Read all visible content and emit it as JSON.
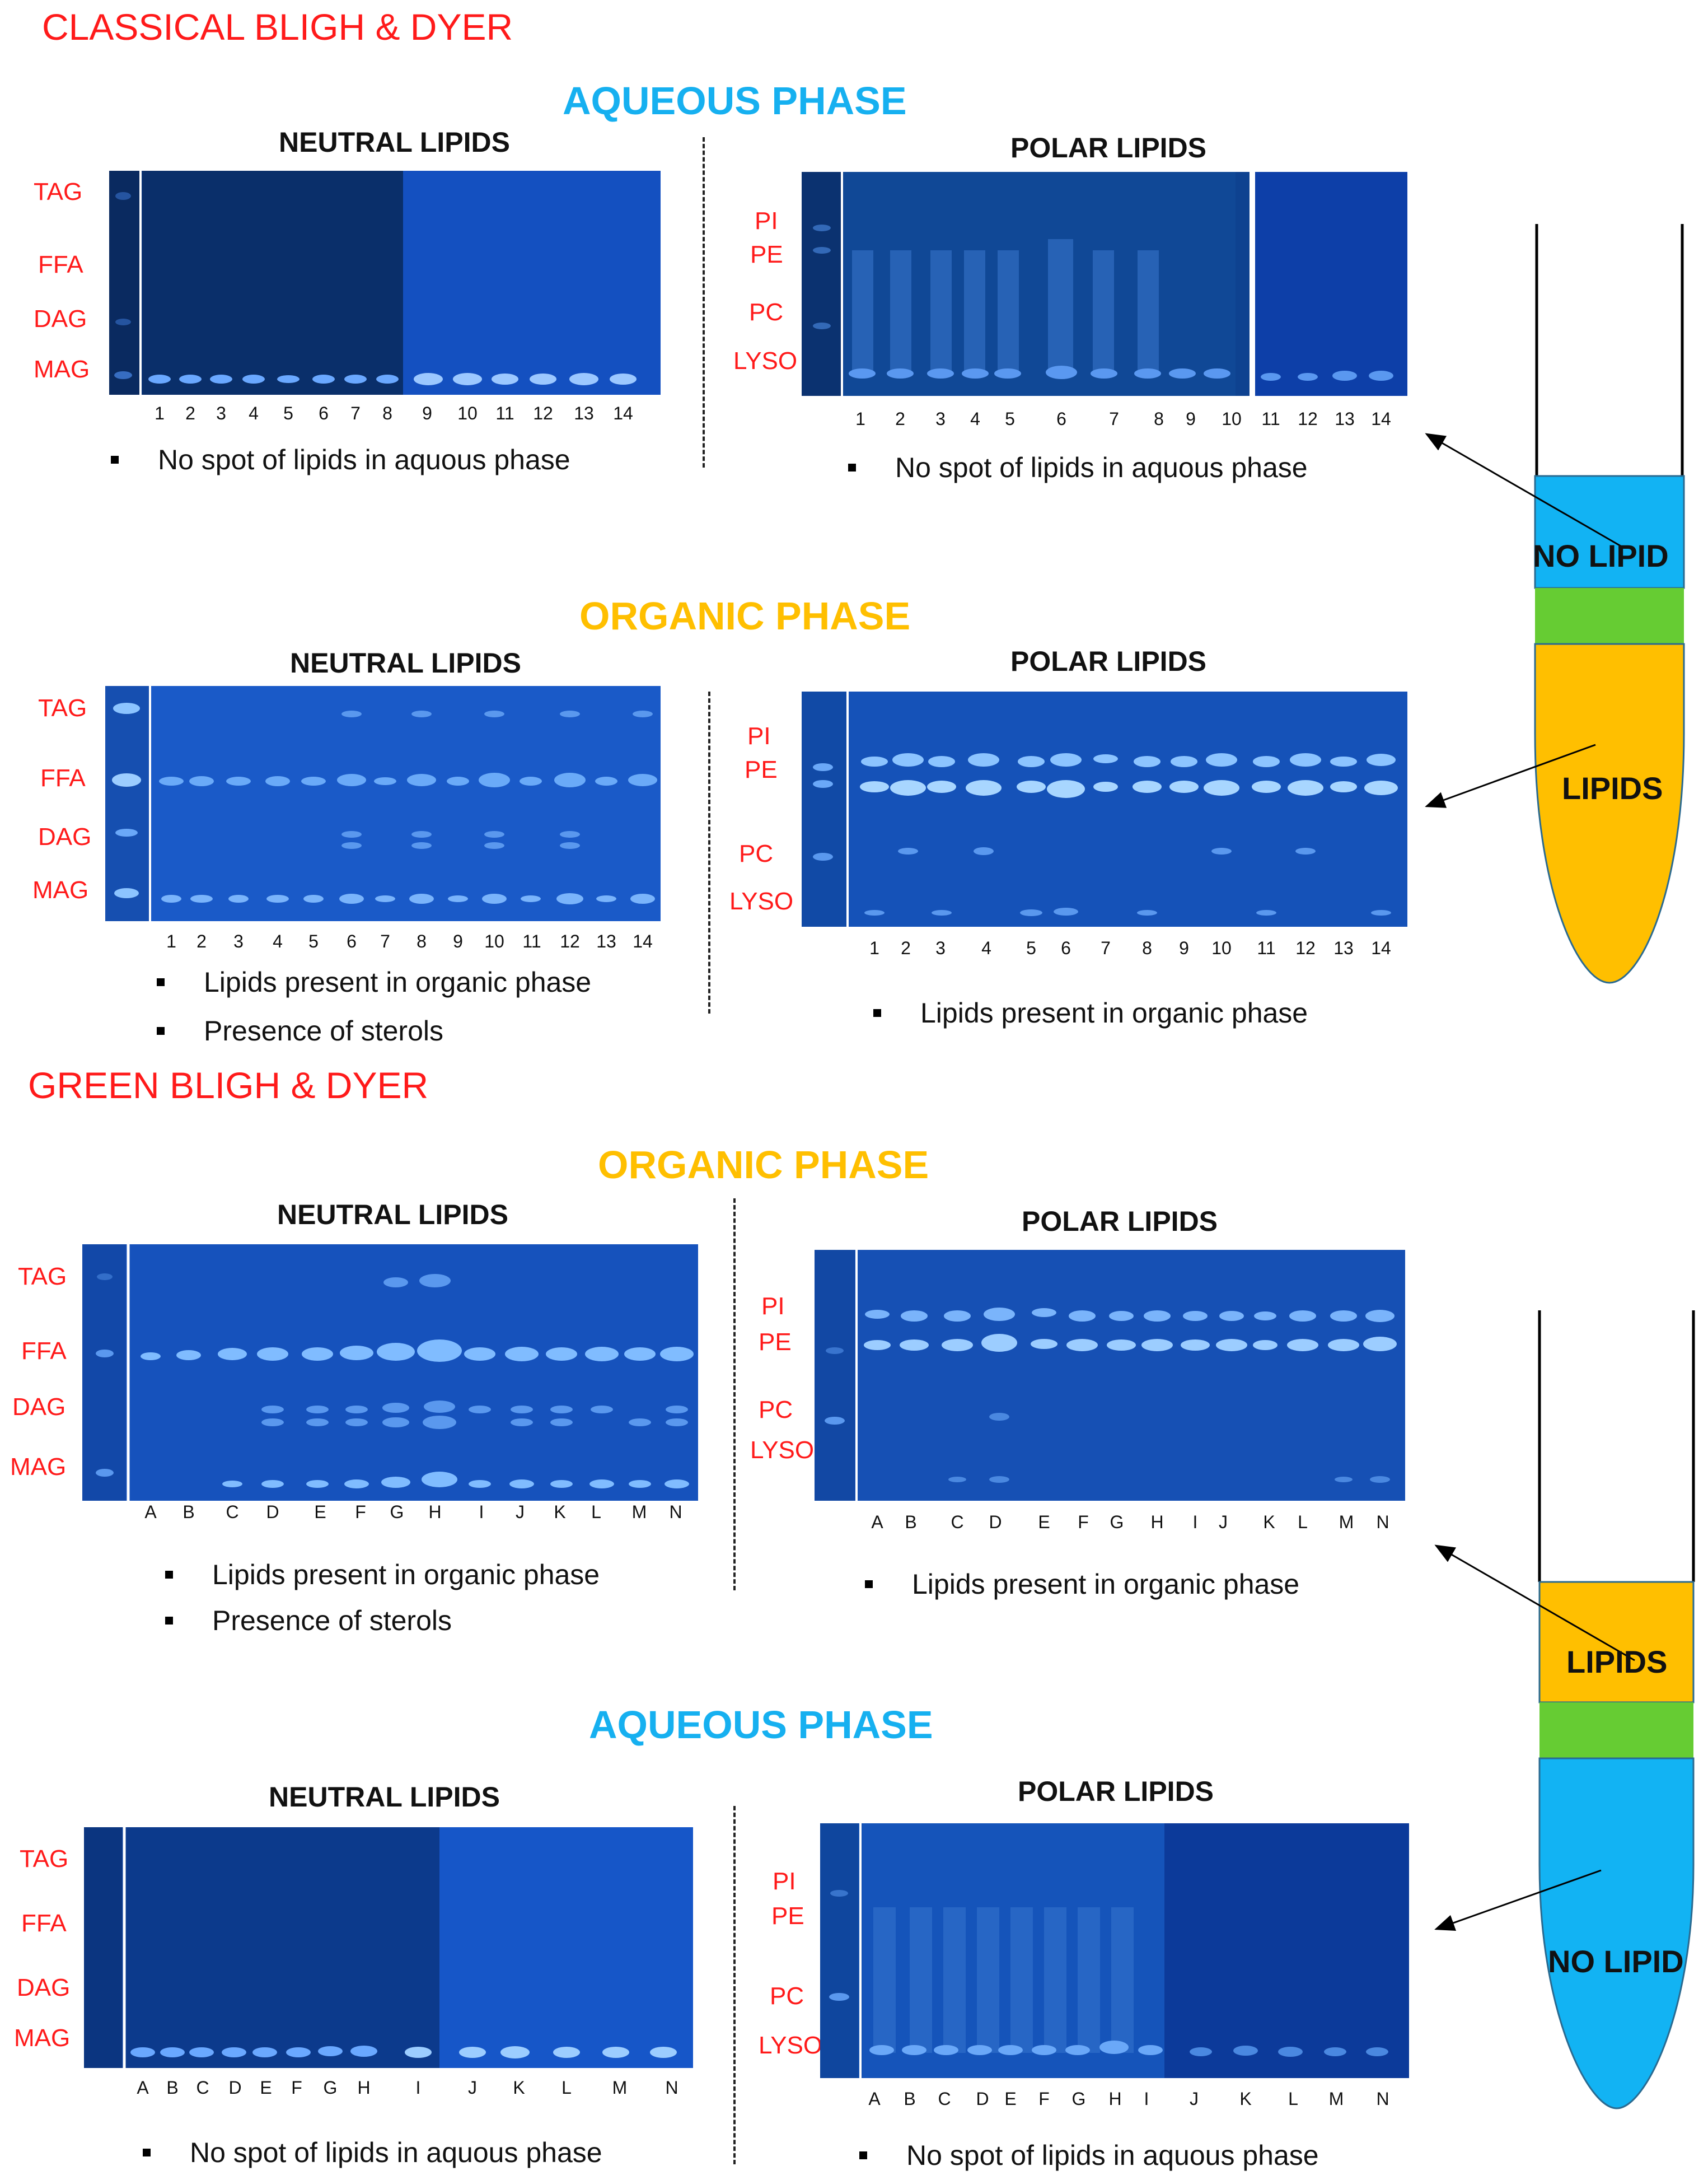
{
  "colors": {
    "accent_red": "#ff1a1a",
    "aqueous": "#16b0f0",
    "organic": "#ffbf00",
    "interface": "#66cc33",
    "gel_dark": "#0a2f6e",
    "gel_light": "#1454c8"
  },
  "classical": {
    "title": "CLASSICAL  BLIGH & DYER",
    "aqueous": {
      "phase": "AQUEOUS PHASE",
      "neutral_title": "NEUTRAL LIPIDS",
      "polar_title": "POLAR LIPIDS",
      "neutral_labels": [
        "TAG",
        "FFA",
        "DAG",
        "MAG"
      ],
      "polar_labels": [
        "PI",
        "PE",
        "PC",
        "LYSO"
      ],
      "neutral_lanes": [
        "1",
        "2",
        "3",
        "4",
        "5",
        "6",
        "7",
        "8",
        "9",
        "10",
        "11",
        "12",
        "13",
        "14"
      ],
      "polar_lanes": [
        "1",
        "2",
        "3",
        "4",
        "5",
        "6",
        "7",
        "8",
        "9",
        "10",
        "11",
        "12",
        "13",
        "14"
      ],
      "neutral_note": "No spot of lipids in aquous phase",
      "polar_note": "No spot of lipids in aquous phase"
    },
    "organic": {
      "phase": "ORGANIC PHASE",
      "neutral_title": "NEUTRAL LIPIDS",
      "polar_title": "POLAR LIPIDS",
      "neutral_labels": [
        "TAG",
        "FFA",
        "DAG",
        "MAG"
      ],
      "polar_labels": [
        "PI",
        "PE",
        "PC",
        "LYSO"
      ],
      "neutral_lanes": [
        "1",
        "2",
        "3",
        "4",
        "5",
        "6",
        "7",
        "8",
        "9",
        "10",
        "11",
        "12",
        "13",
        "14"
      ],
      "polar_lanes": [
        "1",
        "2",
        "3",
        "4",
        "5",
        "6",
        "7",
        "8",
        "9",
        "10",
        "11",
        "12",
        "13",
        "14"
      ],
      "neutral_notes": [
        "Lipids present in organic phase",
        "Presence of sterols"
      ],
      "polar_note": "Lipids present in organic phase"
    },
    "tube": {
      "top_label": "NO LIPID",
      "bottom_label": "LIPIDS"
    }
  },
  "green": {
    "title": "GREEN BLIGH & DYER",
    "organic": {
      "phase": "ORGANIC PHASE",
      "neutral_title": "NEUTRAL LIPIDS",
      "polar_title": "POLAR LIPIDS",
      "neutral_labels": [
        "TAG",
        "FFA",
        "DAG",
        "MAG"
      ],
      "polar_labels": [
        "PI",
        "PE",
        "PC",
        "LYSO"
      ],
      "neutral_lanes": [
        "A",
        "B",
        "C",
        "D",
        "E",
        "F",
        "G",
        "H",
        "I",
        "J",
        "K",
        "L",
        "M",
        "N"
      ],
      "polar_lanes": [
        "A",
        "B",
        "C",
        "D",
        "E",
        "F",
        "G",
        "H",
        "I",
        "J",
        "K",
        "L",
        "M",
        "N"
      ],
      "neutral_notes": [
        "Lipids present in organic phase",
        "Presence of sterols"
      ],
      "polar_note": "Lipids present in organic phase"
    },
    "aqueous": {
      "phase": "AQUEOUS PHASE",
      "neutral_title": "NEUTRAL LIPIDS",
      "polar_title": "POLAR LIPIDS",
      "neutral_labels": [
        "TAG",
        "FFA",
        "DAG",
        "MAG"
      ],
      "polar_labels": [
        "PI",
        "PE",
        "PC",
        "LYSO"
      ],
      "neutral_lanes": [
        "A",
        "B",
        "C",
        "D",
        "E",
        "F",
        "G",
        "H",
        "I",
        "J",
        "K",
        "L",
        "M",
        "N"
      ],
      "polar_lanes": [
        "A",
        "B",
        "C",
        "D",
        "E",
        "F",
        "G",
        "H",
        "I",
        "J",
        "K",
        "L",
        "M",
        "N"
      ],
      "neutral_note": "No spot of lipids in aquous phase",
      "polar_note": "No spot of lipids in aquous phase"
    },
    "tube": {
      "top_label": "LIPIDS",
      "bottom_label": "NO LIPID"
    }
  }
}
